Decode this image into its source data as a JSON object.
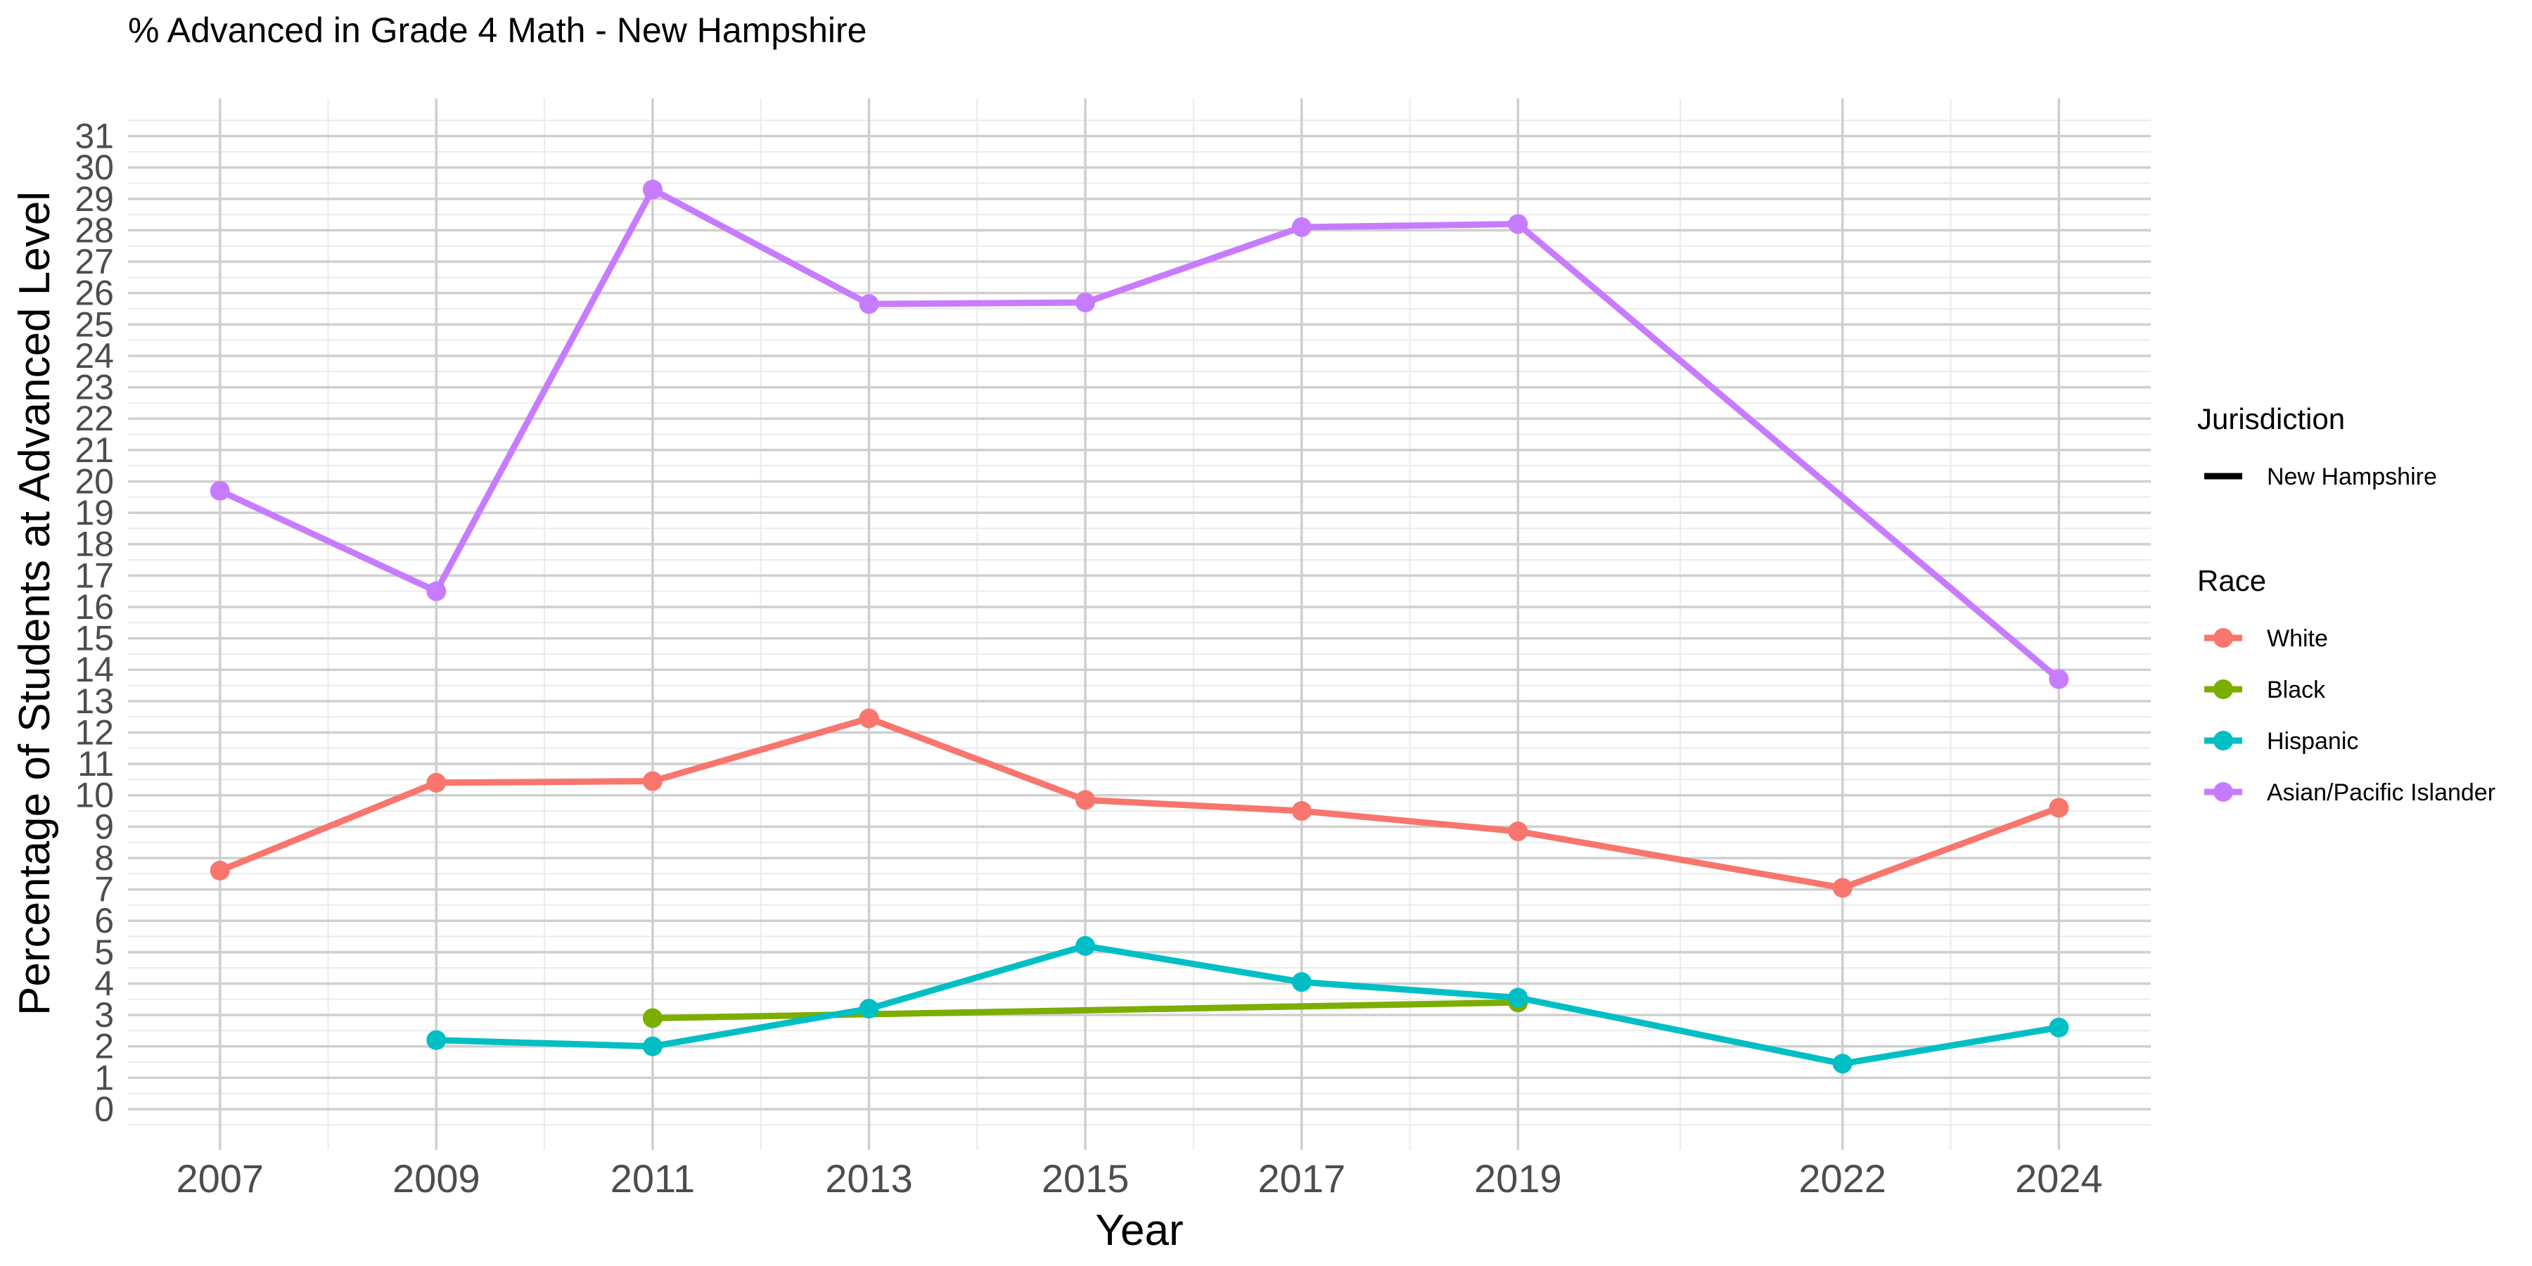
{
  "chart_data": {
    "type": "line",
    "title": "% Advanced in Grade 4 Math - New Hampshire",
    "xlabel": "Year",
    "ylabel": "Percentage of Students at Advanced Level",
    "x_ticks": [
      2007,
      2009,
      2011,
      2013,
      2015,
      2017,
      2019,
      2022,
      2024
    ],
    "y_ticks": [
      0,
      1,
      2,
      3,
      4,
      5,
      6,
      7,
      8,
      9,
      10,
      11,
      12,
      13,
      14,
      15,
      16,
      17,
      18,
      19,
      20,
      21,
      22,
      23,
      24,
      25,
      26,
      27,
      28,
      29,
      30,
      31
    ],
    "xlim": [
      2006.15,
      2024.85
    ],
    "ylim": [
      -1.3,
      32.2
    ],
    "grid": true,
    "legend_position": "right",
    "legend": {
      "jurisdiction_title": "Jurisdiction",
      "jurisdiction_items": [
        "New Hampshire"
      ],
      "race_title": "Race"
    },
    "series": [
      {
        "name": "White",
        "color": "#F8766D",
        "x": [
          2007,
          2009,
          2011,
          2013,
          2015,
          2017,
          2019,
          2022,
          2024
        ],
        "values": [
          7.6,
          10.4,
          10.45,
          12.45,
          9.85,
          9.5,
          8.85,
          7.05,
          9.6
        ]
      },
      {
        "name": "Black",
        "color": "#7CAE00",
        "x": [
          2011,
          2019
        ],
        "values": [
          2.9,
          3.4
        ]
      },
      {
        "name": "Hispanic",
        "color": "#00BFC4",
        "x": [
          2009,
          2011,
          2013,
          2015,
          2017,
          2019,
          2022,
          2024
        ],
        "values": [
          2.2,
          2.0,
          3.2,
          5.2,
          4.05,
          3.55,
          1.45,
          2.6
        ]
      },
      {
        "name": "Asian/Pacific Islander",
        "color": "#C77CFF",
        "x": [
          2007,
          2009,
          2011,
          2013,
          2015,
          2017,
          2019,
          2024
        ],
        "values": [
          19.7,
          16.5,
          29.3,
          25.65,
          25.7,
          28.1,
          28.2,
          13.7
        ]
      }
    ]
  }
}
